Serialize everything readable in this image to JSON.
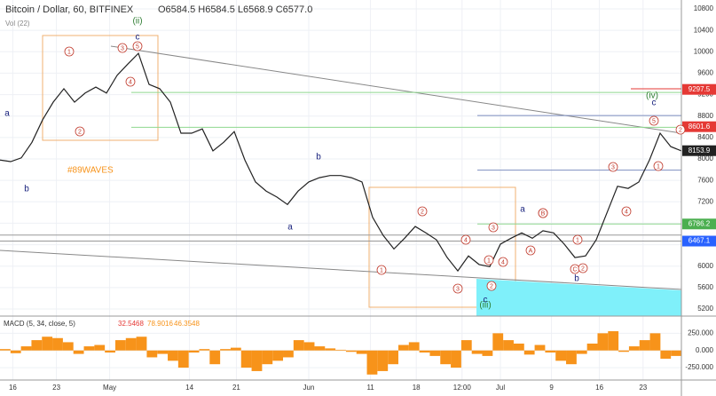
{
  "chart_data": [
    {
      "type": "line",
      "title": "Bitcoin / Dollar, 60, BITFINEX",
      "ohlc": "O6584.5 H6584.5 L6568.9 C6577.0",
      "volume_label": "Vol (22)",
      "watermark": "#89WAVES",
      "color": "#222222",
      "xlim": [
        0,
        64
      ],
      "ylim": [
        5200,
        10800
      ],
      "yticks": [
        5200,
        5600,
        6000,
        6400,
        6800,
        7200,
        7600,
        8000,
        8400,
        8800,
        9200,
        9600,
        10000,
        10400,
        10800
      ],
      "xticks": [
        {
          "value": 1.2,
          "label": "16"
        },
        {
          "value": 5.3,
          "label": "23"
        },
        {
          "value": 10.3,
          "label": "May"
        },
        {
          "value": 17.8,
          "label": "14"
        },
        {
          "value": 22.2,
          "label": "21"
        },
        {
          "value": 29,
          "label": "Jun"
        },
        {
          "value": 34.8,
          "label": "11"
        },
        {
          "value": 39.1,
          "label": "18"
        },
        {
          "value": 43.4,
          "label": "12:00"
        },
        {
          "value": 47,
          "label": "Jul"
        },
        {
          "value": 51.8,
          "label": "9"
        },
        {
          "value": 56.3,
          "label": "16"
        },
        {
          "value": 60.4,
          "label": "23"
        }
      ],
      "grid": true,
      "values": [
        7980,
        7950,
        8020,
        8310,
        8730,
        9060,
        9310,
        9060,
        9230,
        9340,
        9230,
        9560,
        9770,
        9970,
        9390,
        9310,
        9060,
        8480,
        8480,
        8560,
        8150,
        8310,
        8510,
        7980,
        7570,
        7400,
        7290,
        7150,
        7400,
        7570,
        7650,
        7690,
        7690,
        7650,
        7570,
        6910,
        6570,
        6320,
        6520,
        6740,
        6620,
        6490,
        6160,
        5910,
        6190,
        6030,
        5990,
        6410,
        6520,
        6620,
        6520,
        6660,
        6620,
        6410,
        6160,
        6190,
        6490,
        6990,
        7490,
        7450,
        7570,
        7980,
        8480,
        8230,
        8150
      ],
      "levels": [
        {
          "value": 9240,
          "color": "#8fd88f"
        },
        {
          "value": 8590,
          "color": "#8fd88f"
        },
        {
          "value": 8810,
          "color": "#7f8fc0"
        },
        {
          "value": 7790,
          "color": "#7f8fc0"
        },
        {
          "value": 6786.2,
          "color": "#8fd88f"
        },
        {
          "value": 6580,
          "color": "#999999"
        },
        {
          "value": 6467.1,
          "color": "#999999"
        }
      ],
      "price_labels": [
        {
          "value": 9297.5,
          "color": "#e53935"
        },
        {
          "value": 8601.6,
          "color": "#e53935"
        },
        {
          "value": 8153.9,
          "color": "#222222"
        },
        {
          "value": 6786.2,
          "color": "#4caf50"
        },
        {
          "value": 6467.1,
          "color": "#2962ff"
        }
      ],
      "annotations": [
        "1",
        "2",
        "3",
        "4",
        "5",
        "1",
        "2",
        "3",
        "4",
        "1",
        "2",
        "3",
        "4",
        "A",
        "B",
        "C",
        "1",
        "2",
        "3",
        "4",
        "5",
        "1",
        "2",
        "B",
        "a",
        "b",
        "c",
        "a",
        "b",
        "a",
        "b",
        "c",
        "c",
        "(ii)",
        "(iii)",
        "(iv)"
      ]
    },
    {
      "type": "bar",
      "title": "MACD (5, 34, close, 5)",
      "readings": [
        32.5468,
        78.9016,
        46.3548
      ],
      "color": "#f7931a",
      "ylim": [
        -430,
        500
      ],
      "yticks": [
        {
          "value": 250,
          "label": "250.000"
        },
        {
          "value": 0,
          "label": "0.000"
        },
        {
          "value": -250,
          "label": "-250.000"
        }
      ],
      "values": [
        20,
        -40,
        60,
        150,
        200,
        180,
        120,
        -50,
        60,
        80,
        -30,
        150,
        180,
        200,
        -100,
        -50,
        -150,
        -250,
        -30,
        20,
        -200,
        20,
        40,
        -250,
        -300,
        -200,
        -150,
        -100,
        150,
        120,
        60,
        30,
        10,
        -20,
        -50,
        -350,
        -300,
        -200,
        80,
        120,
        -30,
        -80,
        -200,
        -250,
        150,
        -50,
        -80,
        250,
        150,
        100,
        -60,
        80,
        -30,
        -150,
        -200,
        -50,
        100,
        250,
        280,
        -20,
        60,
        150,
        250,
        -120,
        -80
      ]
    }
  ]
}
